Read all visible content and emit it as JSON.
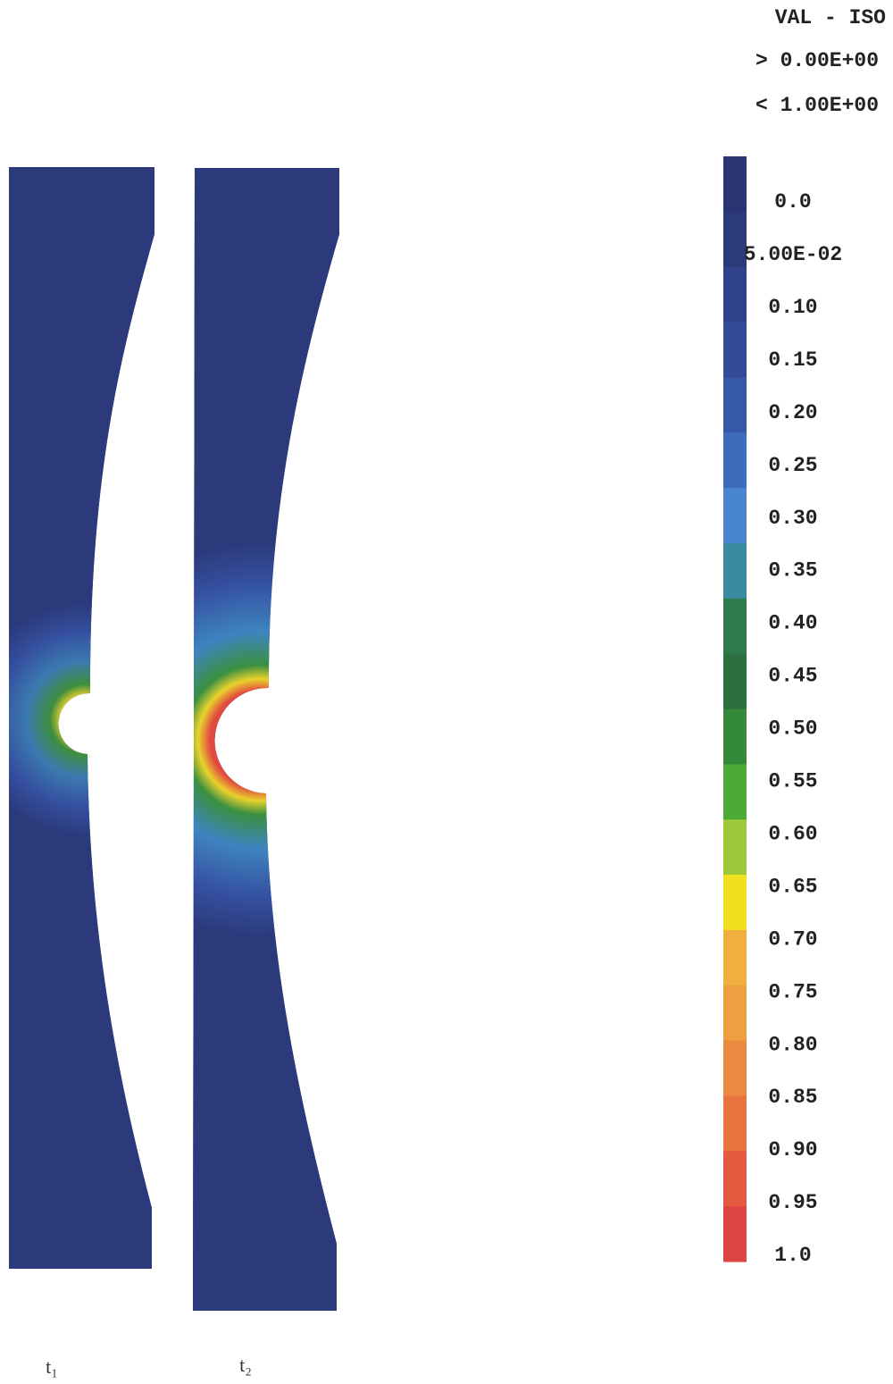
{
  "legend": {
    "title": "VAL - ISO",
    "min_label": "> 0.00E+00",
    "max_label": "< 1.00E+00",
    "labels": [
      "0.0",
      "5.00E-02",
      "0.10",
      "0.15",
      "0.20",
      "0.25",
      "0.30",
      "0.35",
      "0.40",
      "0.45",
      "0.50",
      "0.55",
      "0.60",
      "0.65",
      "0.70",
      "0.75",
      "0.80",
      "0.85",
      "0.90",
      "0.95",
      "1.0"
    ]
  },
  "panels": [
    {
      "label": "t₁"
    },
    {
      "label": "t₂"
    }
  ]
}
